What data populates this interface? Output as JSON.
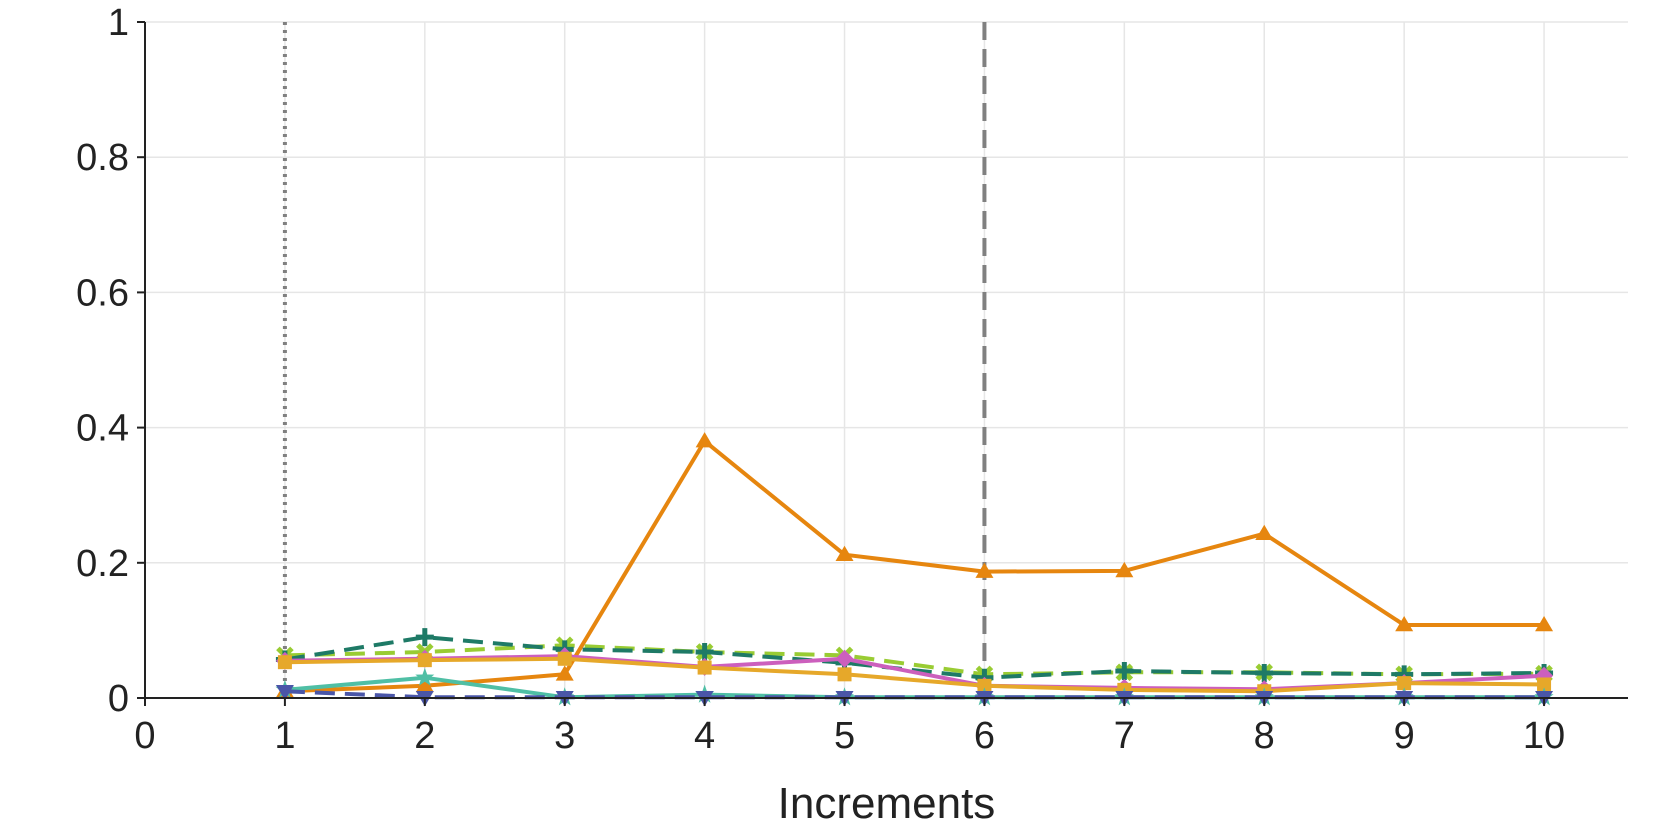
{
  "chart_data": {
    "type": "line",
    "xlabel": "Increments",
    "ylabel": "",
    "xlim": [
      0,
      10.6
    ],
    "ylim": [
      0,
      1
    ],
    "xticks": [
      "0",
      "1",
      "2",
      "3",
      "4",
      "5",
      "6",
      "7",
      "8",
      "9",
      "10"
    ],
    "yticks": [
      "0",
      "0.2",
      "0.4",
      "0.6",
      "0.8",
      "1"
    ],
    "grid": true,
    "x": [
      1,
      2,
      3,
      4,
      5,
      6,
      7,
      8,
      9,
      10
    ],
    "vlines": [
      {
        "x": 1,
        "style": "dotted",
        "color": "#808080"
      },
      {
        "x": 6,
        "style": "dashed",
        "color": "#808080"
      }
    ],
    "series": [
      {
        "color": "#e6860f",
        "dash": "solid",
        "marker": "triangle",
        "values": [
          0.01,
          0.018,
          0.035,
          0.38,
          0.212,
          0.187,
          0.188,
          0.243,
          0.108,
          0.108
        ]
      },
      {
        "color": "#99cc33",
        "dash": "dashed",
        "marker": "x",
        "values": [
          0.063,
          0.068,
          0.078,
          0.068,
          0.063,
          0.035,
          0.038,
          0.038,
          0.035,
          0.036
        ]
      },
      {
        "color": "#1e7a66",
        "dash": "dashed",
        "marker": "plus",
        "values": [
          0.057,
          0.09,
          0.072,
          0.068,
          0.052,
          0.03,
          0.04,
          0.037,
          0.035,
          0.037
        ]
      },
      {
        "color": "#cc5fbd",
        "dash": "solid",
        "marker": "diamond",
        "values": [
          0.055,
          0.058,
          0.062,
          0.046,
          0.058,
          0.018,
          0.015,
          0.013,
          0.022,
          0.033
        ]
      },
      {
        "color": "#e6a82a",
        "dash": "solid",
        "marker": "square",
        "values": [
          0.053,
          0.056,
          0.058,
          0.045,
          0.035,
          0.018,
          0.012,
          0.01,
          0.022,
          0.02
        ]
      },
      {
        "color": "#4fbfa5",
        "dash": "solid",
        "marker": "star",
        "values": [
          0.012,
          0.03,
          0.001,
          0.005,
          0.001,
          0.001,
          0.001,
          0.001,
          0.001,
          0.001
        ]
      },
      {
        "color": "#4a56a8",
        "dash": "dashed",
        "marker": "triangle-down",
        "values": [
          0.01,
          0.001,
          0.001,
          0.001,
          0.001,
          0.001,
          0.001,
          0.001,
          0.001,
          0.001
        ]
      }
    ]
  }
}
